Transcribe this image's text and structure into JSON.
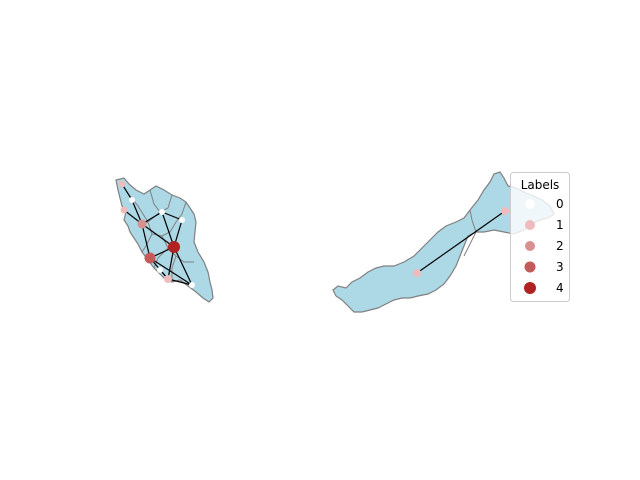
{
  "map": {
    "colors": {
      "land": "#add8e6",
      "border": "#808080",
      "edge": "#000000"
    },
    "legend": {
      "title": "Labels",
      "entries": [
        {
          "label": "0",
          "color": "#ffffff"
        },
        {
          "label": "1",
          "color": "#eebcbc"
        },
        {
          "label": "2",
          "color": "#d99090"
        },
        {
          "label": "3",
          "color": "#c45a5a"
        },
        {
          "label": "4",
          "color": "#b22222"
        }
      ]
    }
  }
}
